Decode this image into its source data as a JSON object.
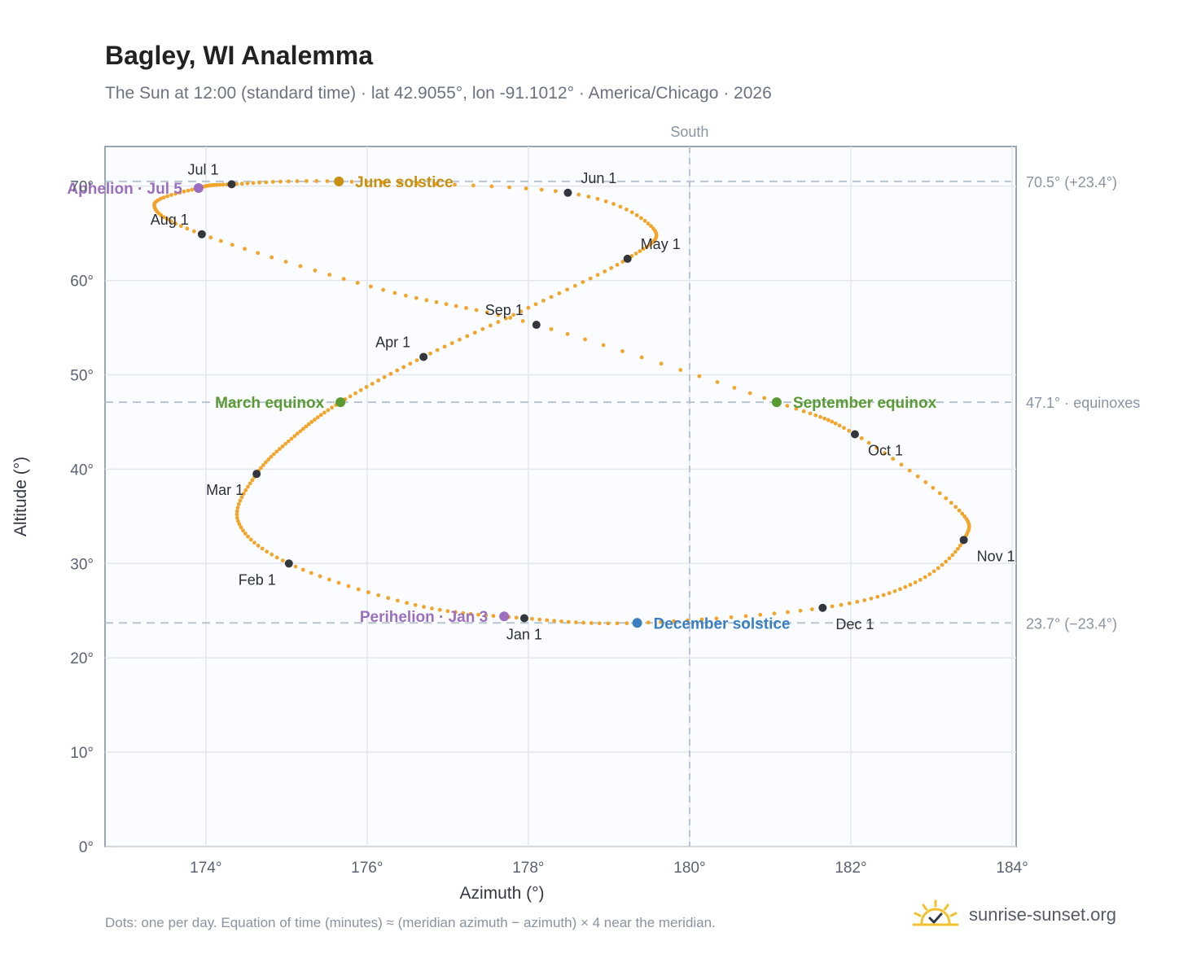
{
  "title": "Bagley, WI Analemma",
  "subtitle": "The Sun at 12:00 (standard time) · lat 42.9055°, lon -91.1012° · America/Chicago · 2026",
  "footnote": "Dots: one per day. Equation of time (minutes) ≈ (meridian azimuth − azimuth) × 4 near the meridian.",
  "brand": {
    "text": "sunrise-sunset.org",
    "logo_icon": "sun-check-icon"
  },
  "colors": {
    "path": "#f2a52a",
    "month": "#33363d",
    "june": "#c8900e",
    "equinox": "#5a9a32",
    "december": "#3a7fc1",
    "apsis": "#9b6fbd",
    "ref": "#b8c4d0"
  },
  "chart_data": {
    "type": "scatter",
    "title": "Bagley, WI Analemma",
    "xlabel": "Azimuth (°)",
    "ylabel": "Altitude (°)",
    "xlim": [
      172.75,
      184.05
    ],
    "ylim": [
      0,
      74.2
    ],
    "xticks": [
      174,
      176,
      178,
      180,
      182,
      184
    ],
    "xtick_labels": [
      "174°",
      "176°",
      "178°",
      "180°",
      "182°",
      "184°"
    ],
    "yticks": [
      0,
      10,
      20,
      30,
      40,
      50,
      60,
      70
    ],
    "ytick_labels": [
      "0°",
      "10°",
      "20°",
      "30°",
      "40°",
      "50°",
      "60°",
      "70°"
    ],
    "grid": true,
    "south_line": {
      "x": 180,
      "label": "South"
    },
    "ref_lines": [
      {
        "y": 70.5,
        "label": "70.5° (+23.4°)"
      },
      {
        "y": 47.1,
        "label": "47.1° · equinoxes"
      },
      {
        "y": 23.7,
        "label": "23.7° (−23.4°)"
      }
    ],
    "path_anchors": [
      {
        "x": 177.95,
        "y": 24.2
      },
      {
        "x": 176.6,
        "y": 25.6
      },
      {
        "x": 175.03,
        "y": 30.0
      },
      {
        "x": 174.4,
        "y": 34.5
      },
      {
        "x": 174.63,
        "y": 39.5
      },
      {
        "x": 175.1,
        "y": 43.5
      },
      {
        "x": 175.67,
        "y": 47.1
      },
      {
        "x": 176.7,
        "y": 51.9
      },
      {
        "x": 178.0,
        "y": 57.1
      },
      {
        "x": 179.23,
        "y": 62.3
      },
      {
        "x": 179.55,
        "y": 65.5
      },
      {
        "x": 178.49,
        "y": 69.3
      },
      {
        "x": 175.65,
        "y": 70.5
      },
      {
        "x": 174.32,
        "y": 70.2
      },
      {
        "x": 173.91,
        "y": 69.8
      },
      {
        "x": 173.36,
        "y": 68.0
      },
      {
        "x": 173.95,
        "y": 64.9
      },
      {
        "x": 176.2,
        "y": 59.0
      },
      {
        "x": 178.1,
        "y": 55.3
      },
      {
        "x": 181.08,
        "y": 47.1
      },
      {
        "x": 182.05,
        "y": 43.7
      },
      {
        "x": 183.3,
        "y": 36.0
      },
      {
        "x": 183.4,
        "y": 32.5
      },
      {
        "x": 182.8,
        "y": 28.0
      },
      {
        "x": 181.65,
        "y": 25.3
      },
      {
        "x": 179.35,
        "y": 23.7
      },
      {
        "x": 177.95,
        "y": 24.2
      }
    ],
    "months": [
      {
        "label": "Jan 1",
        "x": 177.95,
        "y": 24.2,
        "pos": "below"
      },
      {
        "label": "Feb 1",
        "x": 175.03,
        "y": 30.0,
        "pos": "below-left"
      },
      {
        "label": "Mar 1",
        "x": 174.63,
        "y": 39.5,
        "pos": "below-left"
      },
      {
        "label": "Apr 1",
        "x": 176.7,
        "y": 51.9,
        "pos": "above-left"
      },
      {
        "label": "May 1",
        "x": 179.23,
        "y": 62.3,
        "pos": "above-right"
      },
      {
        "label": "Jun 1",
        "x": 178.49,
        "y": 69.3,
        "pos": "above-right"
      },
      {
        "label": "Jul 1",
        "x": 174.32,
        "y": 70.2,
        "pos": "above-left"
      },
      {
        "label": "Aug 1",
        "x": 173.95,
        "y": 64.9,
        "pos": "above-left"
      },
      {
        "label": "Sep 1",
        "x": 178.1,
        "y": 55.3,
        "pos": "above-left"
      },
      {
        "label": "Oct 1",
        "x": 182.05,
        "y": 43.7,
        "pos": "below-right"
      },
      {
        "label": "Nov 1",
        "x": 183.4,
        "y": 32.5,
        "pos": "below-right"
      },
      {
        "label": "Dec 1",
        "x": 181.65,
        "y": 25.3,
        "pos": "below-right"
      }
    ],
    "events": [
      {
        "label": "June solstice",
        "x": 175.65,
        "y": 70.5,
        "color": "#c8900e",
        "side": "right"
      },
      {
        "label": "March equinox",
        "x": 175.67,
        "y": 47.1,
        "color": "#5a9a32",
        "side": "left"
      },
      {
        "label": "September equinox",
        "x": 181.08,
        "y": 47.1,
        "color": "#5a9a32",
        "side": "right"
      },
      {
        "label": "December solstice",
        "x": 179.35,
        "y": 23.7,
        "color": "#3a7fc1",
        "side": "right"
      },
      {
        "label": "Aphelion · Jul 5",
        "x": 173.91,
        "y": 69.8,
        "color": "#9b6fbd",
        "side": "left"
      },
      {
        "label": "Perihelion · Jan 3",
        "x": 177.7,
        "y": 24.4,
        "color": "#9b6fbd",
        "side": "left"
      }
    ]
  }
}
